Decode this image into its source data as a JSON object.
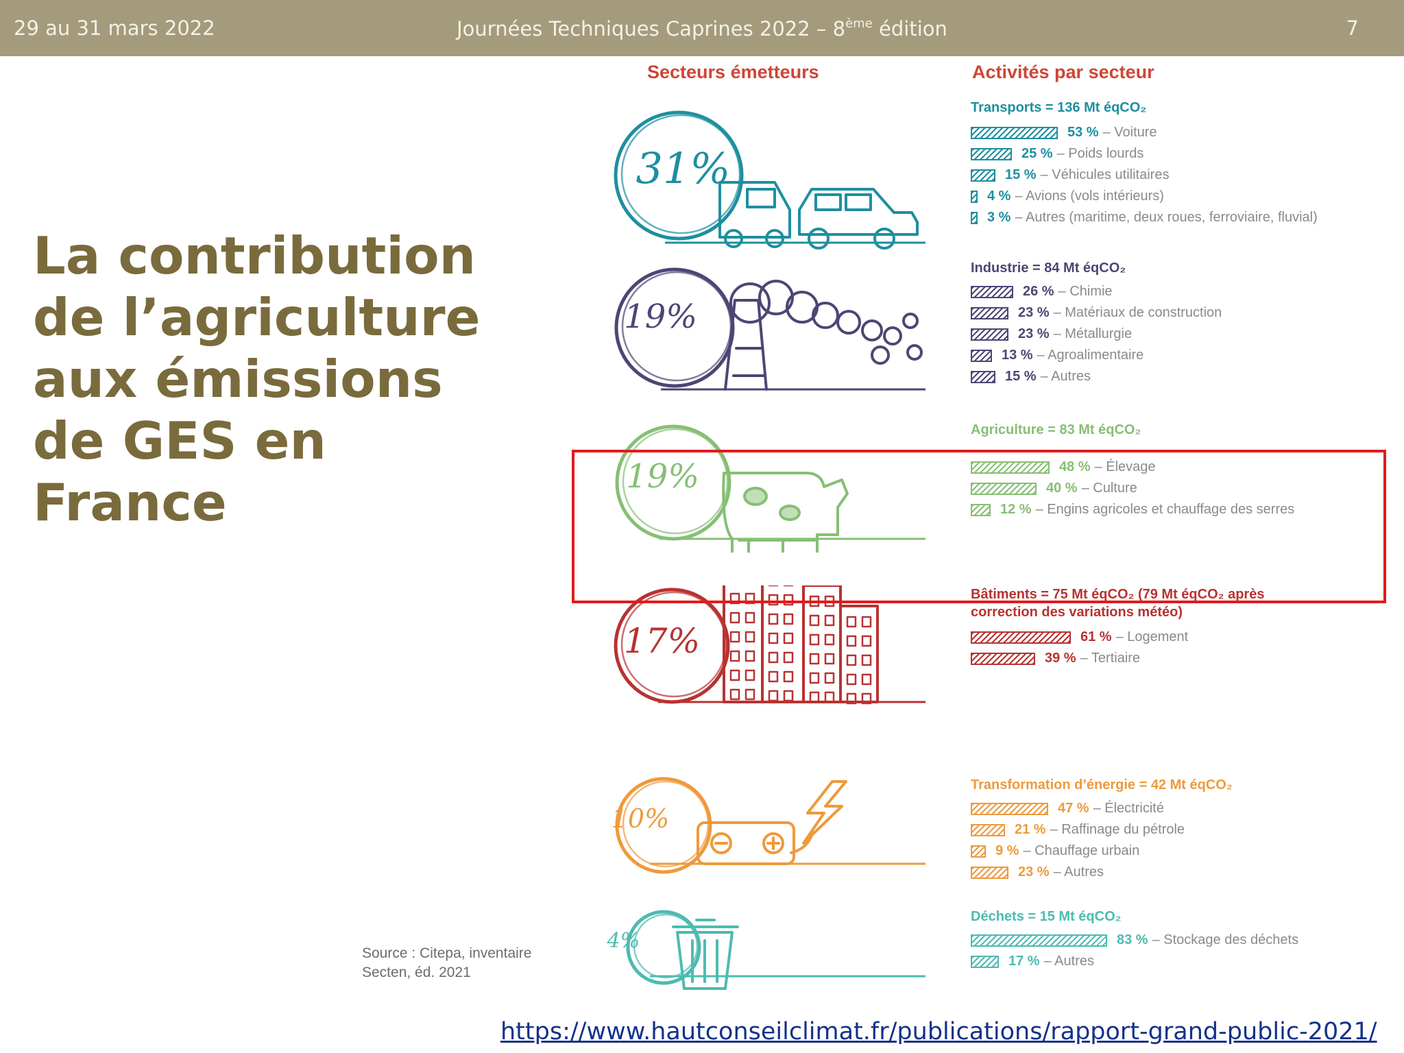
{
  "header": {
    "date": "29 au 31 mars 2022",
    "event_main": "Journées Techniques Caprines 2022 – 8",
    "event_sup": "ème",
    "event_tail": " édition",
    "page_number": "7"
  },
  "title_lines": [
    "La contribution",
    "de l’agriculture",
    "aux émissions",
    "de GES en",
    "France"
  ],
  "source_lines": [
    "Source : Citepa, inventaire",
    "Secten, éd. 2021"
  ],
  "link_text": "https://www.hautconseilclimat.fr/publications/rapport-grand-public-2021/",
  "infographic": {
    "left_heading": "Secteurs émetteurs",
    "right_heading": "Activités par secteur",
    "highlighted_sector": "Agriculture",
    "sectors": [
      {
        "percent": "31%",
        "color": "#1e8fa0",
        "icon": "truck-car-icon",
        "heading_lines": [
          "Transports = 136 Mt éqCO₂"
        ],
        "activities": [
          {
            "value": "53 %",
            "label": "– Voiture",
            "share": 53
          },
          {
            "value": "25 %",
            "label": "– Poids lourds",
            "share": 25
          },
          {
            "value": "15 %",
            "label": "– Véhicules utilitaires",
            "share": 15
          },
          {
            "value": "4 %",
            "label": "– Avions (vols intérieurs)",
            "share": 4
          },
          {
            "value": "3 %",
            "label": "– Autres (maritime, deux roues, ferroviaire, fluvial)",
            "share": 3
          }
        ]
      },
      {
        "percent": "19%",
        "color": "#4f4574",
        "icon": "factory-smoke-icon",
        "heading_lines": [
          "Industrie = 84 Mt éqCO₂"
        ],
        "activities": [
          {
            "value": "26 %",
            "label": "– Chimie",
            "share": 26
          },
          {
            "value": "23 %",
            "label": "– Matériaux de construction",
            "share": 23
          },
          {
            "value": "23 %",
            "label": "– Métallurgie",
            "share": 23
          },
          {
            "value": "13 %",
            "label": "– Agroalimentaire",
            "share": 13
          },
          {
            "value": "15 %",
            "label": "– Autres",
            "share": 15
          }
        ]
      },
      {
        "percent": "19%",
        "color": "#86bf73",
        "icon": "cow-icon",
        "heading_lines": [
          "Agriculture = 83 Mt éqCO₂"
        ],
        "activities": [
          {
            "value": "48 %",
            "label": "– Élevage",
            "share": 48
          },
          {
            "value": "40 %",
            "label": "– Culture",
            "share": 40
          },
          {
            "value": "12 %",
            "label": "– Engins agricoles et chauffage des serres",
            "share": 12
          }
        ]
      },
      {
        "percent": "17%",
        "color": "#b83232",
        "icon": "buildings-icon",
        "heading_lines": [
          "Bâtiments = 75 Mt éqCO₂ (79 Mt éqCO₂ après",
          "correction des variations météo)"
        ],
        "activities": [
          {
            "value": "61 %",
            "label": "– Logement",
            "share": 61
          },
          {
            "value": "39 %",
            "label": "– Tertiaire",
            "share": 39
          }
        ]
      },
      {
        "percent": "10%",
        "color": "#ee9a3c",
        "icon": "battery-lightning-icon",
        "heading_lines": [
          "Transformation d’énergie = 42 Mt éqCO₂"
        ],
        "activities": [
          {
            "value": "47 %",
            "label": "– Électricité",
            "share": 47
          },
          {
            "value": "21 %",
            "label": "– Raffinage du pétrole",
            "share": 21
          },
          {
            "value": "9 %",
            "label": "– Chauffage urbain",
            "share": 9
          },
          {
            "value": "23 %",
            "label": "– Autres",
            "share": 23
          }
        ]
      },
      {
        "percent": "4%",
        "color": "#4dbbb0",
        "icon": "trash-bin-icon",
        "heading_lines": [
          "Déchets = 15 Mt éqCO₂"
        ],
        "activities": [
          {
            "value": "83 %",
            "label": "– Stockage des déchets",
            "share": 83
          },
          {
            "value": "17 %",
            "label": "– Autres",
            "share": 17
          }
        ]
      }
    ]
  }
}
